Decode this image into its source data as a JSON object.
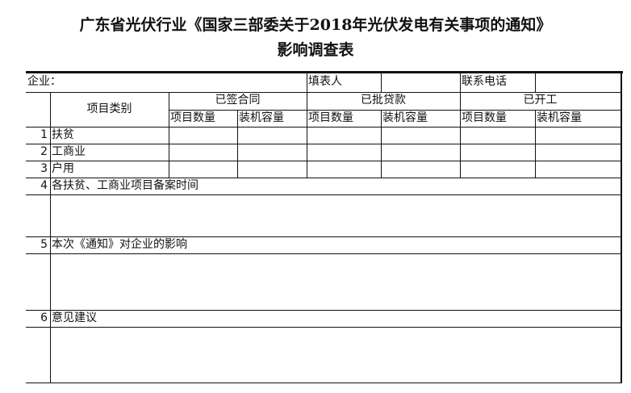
{
  "title": {
    "line1": "广东省光伏行业《国家三部委关于2018年光伏发电有关事项的通知》",
    "line2": "影响调查表"
  },
  "info": {
    "company_label": "企业：",
    "filler_label": "填表人",
    "filler_value": "",
    "phone_label": "联系电话",
    "phone_value": ""
  },
  "header": {
    "category": "项目类别",
    "groups": [
      "已签合同",
      "已批贷款",
      "已开工"
    ],
    "sub": [
      "项目数量",
      "装机容量"
    ]
  },
  "rows": [
    {
      "num": "1",
      "label": "扶贫"
    },
    {
      "num": "2",
      "label": "工商业"
    },
    {
      "num": "3",
      "label": "户用"
    }
  ],
  "sections": [
    {
      "num": "4",
      "label": "各扶贫、工商业项目备案时间"
    },
    {
      "num": "5",
      "label": "本次《通知》对企业的影响"
    },
    {
      "num": "6",
      "label": "意见建议"
    }
  ]
}
